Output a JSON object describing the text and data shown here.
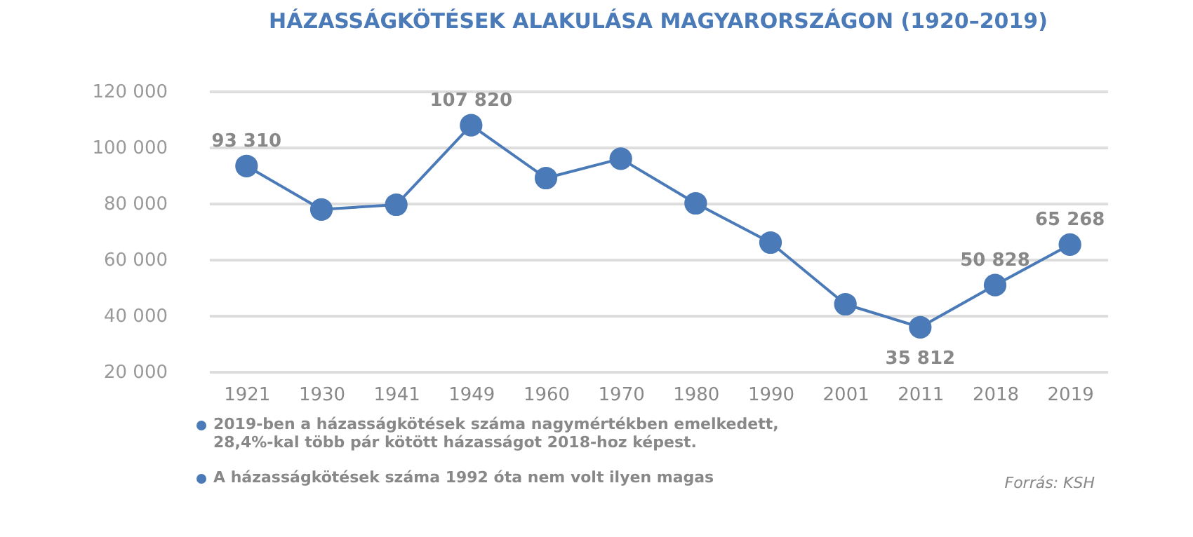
{
  "chart_data": {
    "type": "line",
    "title": "HÁZASSÁGKÖTÉSEK ALAKULÁSA MAGYARORSZÁGON (1920–2019)",
    "categories": [
      "1921",
      "1930",
      "1941",
      "1949",
      "1960",
      "1970",
      "1980",
      "1990",
      "2001",
      "2011",
      "2018",
      "2019"
    ],
    "series": [
      {
        "color": "#4a7ab8",
        "values": [
          93310,
          77800,
          79500,
          107820,
          89000,
          95900,
          80000,
          66000,
          44000,
          35812,
          50828,
          65268
        ],
        "value_labels": [
          "93 310",
          null,
          null,
          "107 820",
          null,
          null,
          null,
          null,
          null,
          "35 812",
          "50 828",
          "65 268"
        ]
      }
    ],
    "ylim": [
      20000,
      120000
    ],
    "yticks": [
      {
        "value": 20000,
        "label": "20 000"
      },
      {
        "value": 40000,
        "label": "40 000"
      },
      {
        "value": 60000,
        "label": "60 000"
      },
      {
        "value": 80000,
        "label": "80 000"
      },
      {
        "value": 100000,
        "label": "100 000"
      },
      {
        "value": 120000,
        "label": "120 000"
      }
    ],
    "grid": "y",
    "legend": false,
    "marker": "circle",
    "line_style": "solid",
    "annotations": [
      "2019-ben a házasságkötések száma nagymértékben emelkedett, 28,4%-kal több pár kötött házasságot 2018-hoz képest.",
      "A házasságkötések száma 1992 óta nem volt ilyen magas",
      "Forrás: KSH"
    ]
  }
}
